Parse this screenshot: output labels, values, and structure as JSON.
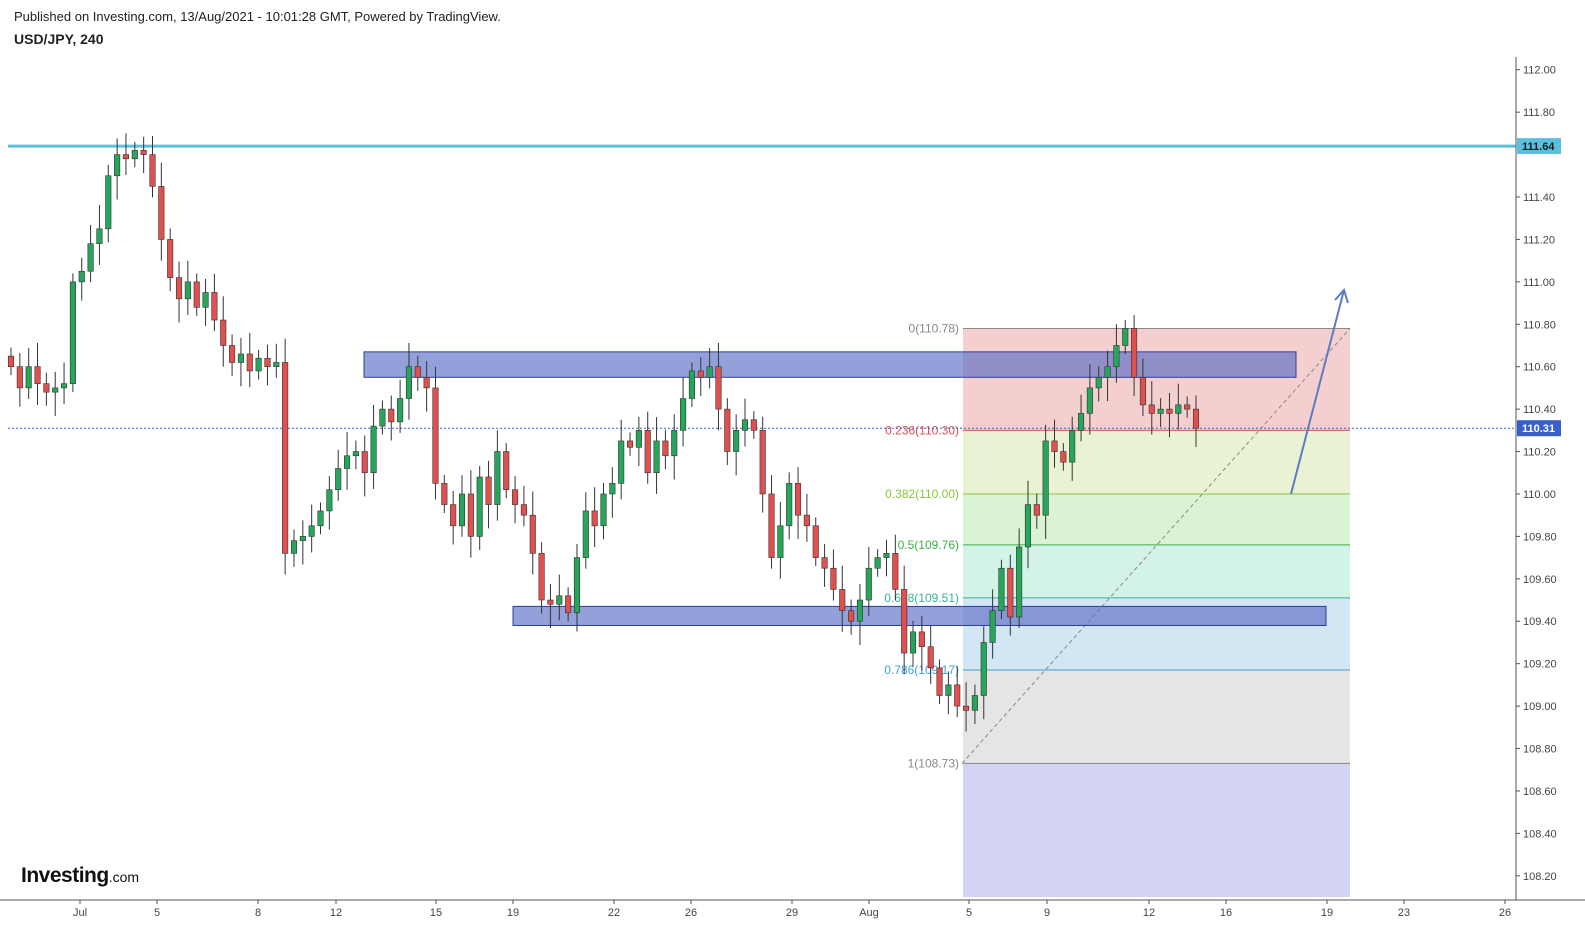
{
  "header": {
    "published": "Published on Investing.com, 13/Aug/2021 - 10:01:28 GMT, Powered by TradingView.",
    "symbol": "USD/JPY, 240"
  },
  "logo": {
    "main": "Investing",
    "suffix": ".com"
  },
  "colors": {
    "up": "#26a65b",
    "down": "#e0504e",
    "resistance_line": "#5bc0de",
    "zone_fill": "#5b6dc4",
    "arrow": "#5b7cc0",
    "current_price": "#3a5fcd"
  },
  "chart_data": {
    "type": "candlestick",
    "title": "USD/JPY, 240",
    "xlabel": "",
    "ylabel": "",
    "ylim": [
      108.1,
      112.06
    ],
    "grid": false,
    "y_ticks": [
      "112.00",
      "111.80",
      "111.40",
      "111.20",
      "111.00",
      "110.80",
      "110.60",
      "110.40",
      "110.20",
      "110.00",
      "109.80",
      "109.60",
      "109.40",
      "109.20",
      "109.00",
      "108.80",
      "108.60",
      "108.40",
      "108.20"
    ],
    "x_ticks": [
      "Jul",
      "5",
      "8",
      "12",
      "15",
      "19",
      "22",
      "26",
      "29",
      "Aug",
      "5",
      "9",
      "12",
      "16",
      "19",
      "23",
      "26"
    ],
    "horizontal_level": {
      "value": 111.64,
      "label": "111.64"
    },
    "current_price": {
      "value": 110.31,
      "label": "110.31"
    },
    "zones": [
      {
        "name": "resistance-zone",
        "from": 110.55,
        "to": 110.67
      },
      {
        "name": "support-zone",
        "from": 109.38,
        "to": 109.47
      }
    ],
    "fibonacci": [
      {
        "label": "0(110.78)",
        "value": 110.78,
        "color": "#888888"
      },
      {
        "label": "0.236(110.30)",
        "value": 110.3,
        "color": "#e0504e"
      },
      {
        "label": "0.382(110.00)",
        "value": 110.0,
        "color": "#8cc63f"
      },
      {
        "label": "0.5(109.76)",
        "value": 109.76,
        "color": "#3cb044"
      },
      {
        "label": "0.618(109.51)",
        "value": 109.51,
        "color": "#35b58f"
      },
      {
        "label": "0.786(109.17)",
        "value": 109.17,
        "color": "#3fa0d8"
      },
      {
        "label": "1(108.73)",
        "value": 108.73,
        "color": "#888888"
      }
    ],
    "closes": [
      110.6,
      110.5,
      110.6,
      110.52,
      110.48,
      110.5,
      110.52,
      111.0,
      111.05,
      111.18,
      111.25,
      111.5,
      111.6,
      111.58,
      111.62,
      111.6,
      111.45,
      111.2,
      111.02,
      110.92,
      111.0,
      110.88,
      110.95,
      110.82,
      110.7,
      110.62,
      110.66,
      110.58,
      110.64,
      110.6,
      110.62,
      109.72,
      109.78,
      109.8,
      109.85,
      109.92,
      110.02,
      110.12,
      110.18,
      110.2,
      110.1,
      110.32,
      110.4,
      110.34,
      110.45,
      110.6,
      110.55,
      110.5,
      110.05,
      109.95,
      109.85,
      110.0,
      109.8,
      110.08,
      109.95,
      110.2,
      110.02,
      109.95,
      109.9,
      109.72,
      109.5,
      109.48,
      109.52,
      109.44,
      109.7,
      109.92,
      109.85,
      110.0,
      110.05,
      110.25,
      110.22,
      110.3,
      110.1,
      110.25,
      110.18,
      110.3,
      110.45,
      110.58,
      110.55,
      110.6,
      110.4,
      110.2,
      110.3,
      110.35,
      110.3,
      110.0,
      109.7,
      109.85,
      110.05,
      109.9,
      109.85,
      109.7,
      109.65,
      109.55,
      109.45,
      109.4,
      109.5,
      109.65,
      109.7,
      109.72,
      109.55,
      109.25,
      109.35,
      109.28,
      109.18,
      109.05,
      109.1,
      109.0,
      108.98,
      109.05,
      109.3,
      109.45,
      109.65,
      109.42,
      109.75,
      109.95,
      109.9,
      110.25,
      110.2,
      110.15,
      110.3,
      110.38,
      110.5,
      110.55,
      110.6,
      110.7,
      110.78,
      110.55,
      110.42,
      110.38,
      110.4,
      110.38,
      110.42,
      110.4,
      110.31
    ],
    "x_range": [
      "Jul",
      "26"
    ]
  }
}
